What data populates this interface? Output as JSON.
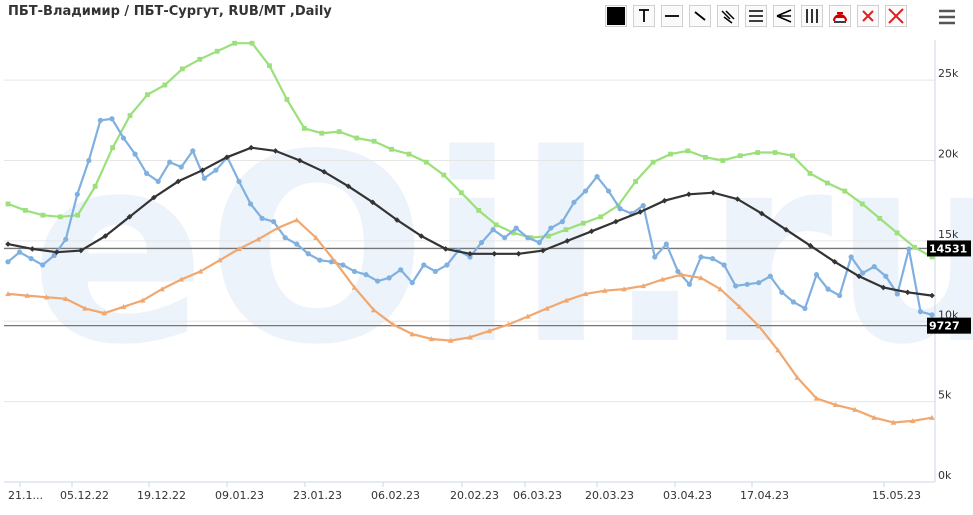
{
  "title": "ПБТ-Владимир / ПБТ-Сургут, RUB/MT ,Daily",
  "toolbar": [
    {
      "name": "color-swatch-button",
      "icon": "black-square-icon"
    },
    {
      "name": "text-tool-button",
      "icon": "text-t-icon"
    },
    {
      "name": "horizontal-line-button",
      "icon": "horizontal-line-icon"
    },
    {
      "name": "ray-tool-button",
      "icon": "diagonal-line-icon"
    },
    {
      "name": "parallel-channel-button",
      "icon": "parallel-lines-icon"
    },
    {
      "name": "horizontal-channel-button",
      "icon": "triple-horizontal-icon"
    },
    {
      "name": "fan-tool-button",
      "icon": "fan-icon"
    },
    {
      "name": "vertical-lines-button",
      "icon": "vertical-lines-icon"
    },
    {
      "name": "arc-tool-button",
      "icon": "arc-icon"
    },
    {
      "name": "delete-selected-button",
      "icon": "red-x-icon"
    },
    {
      "name": "delete-all-button",
      "icon": "red-x-icon"
    }
  ],
  "colors": {
    "blue": "#7fb0e0",
    "green": "#9be07a",
    "orange": "#f0a870",
    "black": "#333333",
    "flag": "#000000",
    "hline": "#777777"
  },
  "watermark": "eOil.ru",
  "chart_data": {
    "type": "line",
    "title": "ПБТ-Владимир / ПБТ-Сургут, RUB/MT ,Daily",
    "x_tick_labels": [
      "21.1...",
      "05.12.22",
      "19.12.22",
      "09.01.23",
      "23.01.23",
      "06.02.23",
      "20.02.23",
      "06.03.23",
      "20.03.23",
      "03.04.23",
      "17.04.23",
      "15.05.23"
    ],
    "ylim": [
      0,
      27500
    ],
    "y_ticks": [
      {
        "v": 0,
        "label": "0k"
      },
      {
        "v": 5000,
        "label": "5k"
      },
      {
        "v": 10000,
        "label": "10k"
      },
      {
        "v": 15000,
        "label": "15k"
      },
      {
        "v": 20000,
        "label": "20k"
      },
      {
        "v": 25000,
        "label": "25k"
      }
    ],
    "horizontal_levels": [
      {
        "value": 14531,
        "label": "14531"
      },
      {
        "value": 9727,
        "label": "9727"
      }
    ],
    "series": [
      {
        "color": "#9be07a",
        "marker": "square",
        "values": [
          17300,
          16900,
          16600,
          16500,
          16600,
          18400,
          20800,
          22800,
          24100,
          24700,
          25700,
          26300,
          26800,
          27300,
          27300,
          25900,
          23800,
          22000,
          21700,
          21800,
          21400,
          21200,
          20700,
          20400,
          19900,
          19100,
          18000,
          16900,
          16000,
          15500,
          15200,
          15300,
          15700,
          16100,
          16500,
          17200,
          18700,
          19900,
          20400,
          20600,
          20200,
          20000,
          20300,
          20500,
          20500,
          20300,
          19200,
          18600,
          18100,
          17300,
          16400,
          15500,
          14600,
          14000
        ]
      },
      {
        "color": "#7fb0e0",
        "marker": "circle",
        "values": [
          13700,
          14300,
          13900,
          13500,
          14100,
          15100,
          17900,
          20000,
          22500,
          22600,
          21400,
          20400,
          19200,
          18700,
          19900,
          19600,
          20600,
          18900,
          19400,
          20200,
          18700,
          17300,
          16400,
          16200,
          15200,
          14800,
          14200,
          13800,
          13700,
          13500,
          13100,
          12900,
          12500,
          12700,
          13200,
          12400,
          13500,
          13100,
          13500,
          14400,
          14000,
          14900,
          15700,
          15200,
          15800,
          15200,
          14900,
          15800,
          16200,
          17400,
          18100,
          19000,
          18100,
          17000,
          16700,
          17200,
          14000,
          14800,
          13100,
          12300,
          14000,
          13900,
          13500,
          12200,
          12300,
          12400,
          12800,
          11800,
          11200,
          10800,
          12900,
          12000,
          11600,
          14000,
          13000,
          13400,
          12800,
          11700,
          14500,
          10600,
          10400
        ]
      },
      {
        "color": "#333333",
        "marker": "diamond",
        "values": [
          14800,
          14500,
          14300,
          14400,
          15300,
          16500,
          17700,
          18700,
          19400,
          20200,
          20800,
          20600,
          20000,
          19300,
          18400,
          17400,
          16300,
          15300,
          14500,
          14200,
          14200,
          14200,
          14400,
          15000,
          15600,
          16200,
          16800,
          17500,
          17900,
          18000,
          17600,
          16700,
          15700,
          14700,
          13700,
          12800,
          12100,
          11800,
          11600
        ]
      },
      {
        "color": "#f0a870",
        "marker": "triangle",
        "values": [
          11700,
          11600,
          11500,
          11400,
          10800,
          10500,
          10900,
          11300,
          12000,
          12600,
          13100,
          13800,
          14500,
          15100,
          15800,
          16300,
          15200,
          13700,
          12100,
          10700,
          9800,
          9200,
          8900,
          8800,
          9000,
          9400,
          9800,
          10300,
          10800,
          11300,
          11700,
          11900,
          12000,
          12200,
          12600,
          12900,
          12700,
          12000,
          10900,
          9700,
          8200,
          6500,
          5200,
          4800,
          4500,
          4000,
          3700,
          3800,
          4000
        ]
      }
    ]
  }
}
